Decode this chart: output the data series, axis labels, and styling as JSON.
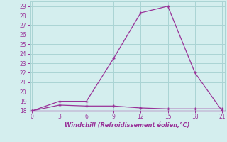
{
  "line1_x": [
    0,
    3,
    6,
    9,
    12,
    15,
    18,
    21
  ],
  "line1_y": [
    18,
    19,
    19,
    23.5,
    28.3,
    29,
    22,
    18
  ],
  "line2_x": [
    0,
    3,
    6,
    9,
    12,
    15,
    18,
    21
  ],
  "line2_y": [
    18,
    18.6,
    18.5,
    18.5,
    18.3,
    18.2,
    18.2,
    18.2
  ],
  "color": "#993399",
  "bg_color": "#d4eeee",
  "grid_color": "#aad4d4",
  "xlabel": "Windchill (Refroidissement éolien,°C)",
  "xlim": [
    -0.3,
    21.3
  ],
  "ylim": [
    18,
    29.5
  ],
  "xticks": [
    0,
    3,
    6,
    9,
    12,
    15,
    18,
    21
  ],
  "yticks": [
    18,
    19,
    20,
    21,
    22,
    23,
    24,
    25,
    26,
    27,
    28,
    29
  ],
  "marker": "+"
}
